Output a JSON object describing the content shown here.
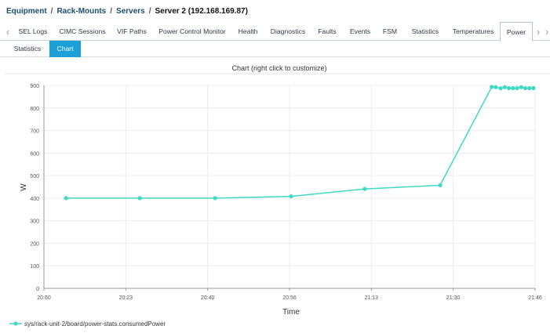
{
  "breadcrumb": {
    "items": [
      "Equipment",
      "Rack-Mounts",
      "Servers"
    ],
    "current": "Server 2 (192.168.169.87)",
    "separator": "/"
  },
  "tabs": {
    "items": [
      "SEL Logs",
      "CIMC Sessions",
      "VIF Paths",
      "Power Control Monitor",
      "Health",
      "Diagnostics",
      "Faults",
      "Events",
      "FSM",
      "Statistics",
      "Temperatures",
      "Power"
    ],
    "active": "Power",
    "prev_icon": "chevron-left-icon",
    "next_icon": "chevron-right-icon"
  },
  "subtabs": {
    "items": [
      "Statistics",
      "Chart"
    ],
    "active": "Chart"
  },
  "colors": {
    "accent": "#1ba0d7",
    "series": "#3fd9c4"
  },
  "chart_data": {
    "type": "line",
    "title": "Chart (right click to customize)",
    "xlabel": "Time",
    "ylabel": "W",
    "ylim": [
      0,
      900
    ],
    "yticks": [
      0,
      100,
      200,
      300,
      400,
      500,
      600,
      700,
      800,
      900
    ],
    "xticks": [
      "20:60",
      "20:23",
      "20:40",
      "20:56",
      "21:13",
      "21:30",
      "21:46"
    ],
    "grid": true,
    "legend": "bottom-left",
    "series": [
      {
        "name": "sys/rack-unit-2/board/power-stats.consumedPower",
        "points": [
          [
            0.27,
            400
          ],
          [
            1.17,
            400
          ],
          [
            2.09,
            400
          ],
          [
            3.02,
            408
          ],
          [
            3.92,
            441
          ],
          [
            4.84,
            457
          ],
          [
            5.47,
            893
          ],
          [
            5.52,
            892
          ],
          [
            5.58,
            887
          ],
          [
            5.63,
            892
          ],
          [
            5.68,
            888
          ],
          [
            5.73,
            888
          ],
          [
            5.78,
            888
          ],
          [
            5.83,
            892
          ],
          [
            5.88,
            888
          ],
          [
            5.93,
            888
          ],
          [
            5.98,
            888
          ]
        ]
      }
    ]
  }
}
